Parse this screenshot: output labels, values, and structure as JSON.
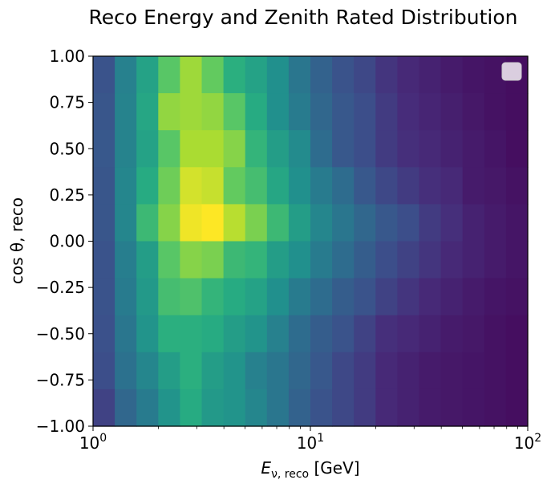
{
  "chart_data": {
    "type": "heatmap",
    "title": "Reco Energy and Zenith Rated Distribution",
    "xlabel": {
      "main": "E",
      "sub": "ν, reco",
      "unit": " [GeV]"
    },
    "ylabel": {
      "main": "cos θ, reco"
    },
    "x_scale": "log",
    "xlim": [
      1,
      100
    ],
    "ylim": [
      -1,
      1
    ],
    "x_ticks": [
      {
        "value": 1,
        "base": "10",
        "exp": "0"
      },
      {
        "value": 10,
        "base": "10",
        "exp": "1"
      },
      {
        "value": 100,
        "base": "10",
        "exp": "2"
      }
    ],
    "y_ticks": [
      "1.00",
      "0.75",
      "0.50",
      "0.25",
      "0.00",
      "−0.25",
      "−0.50",
      "−0.75",
      "−1.00"
    ],
    "y_tick_values": [
      1.0,
      0.75,
      0.5,
      0.25,
      0.0,
      -0.25,
      -0.5,
      -0.75,
      -1.0
    ],
    "x_bin_edges_log10": [
      0,
      0.1,
      0.2,
      0.3,
      0.4,
      0.5,
      0.6,
      0.7,
      0.8,
      0.9,
      1.0,
      1.1,
      1.2,
      1.3,
      1.4,
      1.5,
      1.6,
      1.7,
      1.8,
      1.9,
      2.0
    ],
    "y_bin_edges": [
      -1.0,
      -0.8,
      -0.6,
      -0.4,
      -0.2,
      0.0,
      0.2,
      0.4,
      0.6,
      0.8,
      1.0
    ],
    "colormap": "viridis",
    "value_range": [
      0,
      1
    ],
    "rows_top_to_bottom": [
      [
        0.26,
        0.44,
        0.58,
        0.74,
        0.86,
        0.76,
        0.64,
        0.58,
        0.5,
        0.4,
        0.32,
        0.26,
        0.22,
        0.16,
        0.12,
        0.1,
        0.08,
        0.06,
        0.05,
        0.04
      ],
      [
        0.27,
        0.45,
        0.6,
        0.84,
        0.86,
        0.84,
        0.74,
        0.62,
        0.5,
        0.42,
        0.34,
        0.28,
        0.24,
        0.18,
        0.13,
        0.11,
        0.09,
        0.07,
        0.05,
        0.04
      ],
      [
        0.28,
        0.45,
        0.58,
        0.74,
        0.88,
        0.88,
        0.82,
        0.66,
        0.56,
        0.48,
        0.36,
        0.28,
        0.24,
        0.18,
        0.14,
        0.12,
        0.1,
        0.08,
        0.06,
        0.04
      ],
      [
        0.27,
        0.46,
        0.62,
        0.78,
        0.94,
        0.92,
        0.76,
        0.7,
        0.6,
        0.5,
        0.42,
        0.36,
        0.28,
        0.22,
        0.18,
        0.14,
        0.12,
        0.08,
        0.07,
        0.05
      ],
      [
        0.27,
        0.46,
        0.68,
        0.82,
        0.98,
        1.0,
        0.9,
        0.8,
        0.68,
        0.56,
        0.46,
        0.4,
        0.34,
        0.28,
        0.24,
        0.18,
        0.14,
        0.1,
        0.08,
        0.06
      ],
      [
        0.26,
        0.43,
        0.56,
        0.74,
        0.82,
        0.8,
        0.68,
        0.66,
        0.56,
        0.5,
        0.42,
        0.36,
        0.3,
        0.24,
        0.2,
        0.16,
        0.12,
        0.1,
        0.08,
        0.06
      ],
      [
        0.26,
        0.42,
        0.54,
        0.7,
        0.72,
        0.66,
        0.62,
        0.58,
        0.5,
        0.42,
        0.36,
        0.3,
        0.26,
        0.2,
        0.16,
        0.12,
        0.1,
        0.08,
        0.06,
        0.05
      ],
      [
        0.25,
        0.4,
        0.52,
        0.64,
        0.64,
        0.62,
        0.56,
        0.52,
        0.44,
        0.36,
        0.3,
        0.26,
        0.2,
        0.14,
        0.12,
        0.1,
        0.08,
        0.07,
        0.05,
        0.04
      ],
      [
        0.24,
        0.38,
        0.46,
        0.56,
        0.64,
        0.56,
        0.52,
        0.44,
        0.4,
        0.34,
        0.28,
        0.22,
        0.18,
        0.12,
        0.1,
        0.08,
        0.07,
        0.06,
        0.05,
        0.04
      ],
      [
        0.2,
        0.34,
        0.42,
        0.52,
        0.62,
        0.54,
        0.52,
        0.46,
        0.4,
        0.32,
        0.26,
        0.22,
        0.18,
        0.12,
        0.1,
        0.08,
        0.07,
        0.06,
        0.05,
        0.04
      ]
    ],
    "legend": {
      "placement": "upper-right",
      "entries": []
    }
  }
}
